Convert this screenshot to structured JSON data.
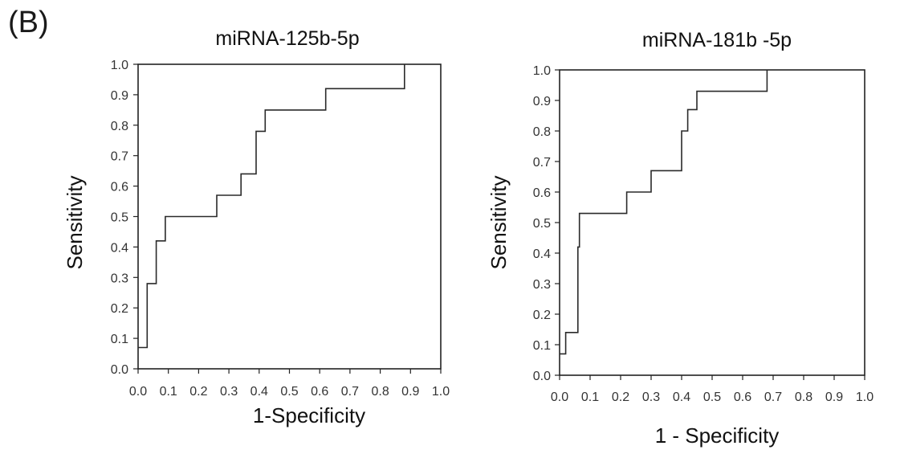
{
  "panel_label": "(B)",
  "chart_data": [
    {
      "type": "line",
      "step": true,
      "title": "miRNA-125b-5p",
      "xlabel": "1-Specificity",
      "ylabel": "Sensitivity",
      "xlim": [
        0,
        1
      ],
      "ylim": [
        0,
        1
      ],
      "x_ticks": [
        "0.0",
        "0.1",
        "0.2",
        "0.3",
        "0.4",
        "0.5",
        "0.6",
        "0.7",
        "0.8",
        "0.9",
        "1.0"
      ],
      "y_ticks": [
        "0.0",
        "0.1",
        "0.2",
        "0.3",
        "0.4",
        "0.5",
        "0.6",
        "0.7",
        "0.8",
        "0.9",
        "1.0"
      ],
      "grid": false,
      "series": [
        {
          "x": [
            0.0,
            0.03,
            0.03,
            0.06,
            0.06,
            0.09,
            0.09,
            0.26,
            0.26,
            0.34,
            0.34,
            0.39,
            0.39,
            0.42,
            0.42,
            0.62,
            0.62,
            0.88,
            0.88
          ],
          "y": [
            0.07,
            0.07,
            0.28,
            0.28,
            0.42,
            0.42,
            0.5,
            0.5,
            0.57,
            0.57,
            0.64,
            0.64,
            0.78,
            0.78,
            0.85,
            0.85,
            0.92,
            0.92,
            1.0
          ]
        }
      ]
    },
    {
      "type": "line",
      "step": true,
      "title": "miRNA-181b -5p",
      "xlabel": "1 - Specificity",
      "ylabel": "Sensitivity",
      "xlim": [
        0,
        1
      ],
      "ylim": [
        0,
        1
      ],
      "x_ticks": [
        "0.0",
        "0.1",
        "0.2",
        "0.3",
        "0.4",
        "0.5",
        "0.6",
        "0.7",
        "0.8",
        "0.9",
        "1.0"
      ],
      "y_ticks": [
        "0.0",
        "0.1",
        "0.2",
        "0.3",
        "0.4",
        "0.5",
        "0.6",
        "0.7",
        "0.8",
        "0.9",
        "1.0"
      ],
      "grid": false,
      "series": [
        {
          "x": [
            0.0,
            0.02,
            0.02,
            0.06,
            0.06,
            0.065,
            0.065,
            0.22,
            0.22,
            0.3,
            0.3,
            0.4,
            0.4,
            0.42,
            0.42,
            0.45,
            0.45,
            0.68,
            0.68
          ],
          "y": [
            0.07,
            0.07,
            0.14,
            0.14,
            0.42,
            0.42,
            0.53,
            0.53,
            0.6,
            0.6,
            0.67,
            0.67,
            0.8,
            0.8,
            0.87,
            0.87,
            0.93,
            0.93,
            1.0
          ]
        }
      ]
    }
  ]
}
